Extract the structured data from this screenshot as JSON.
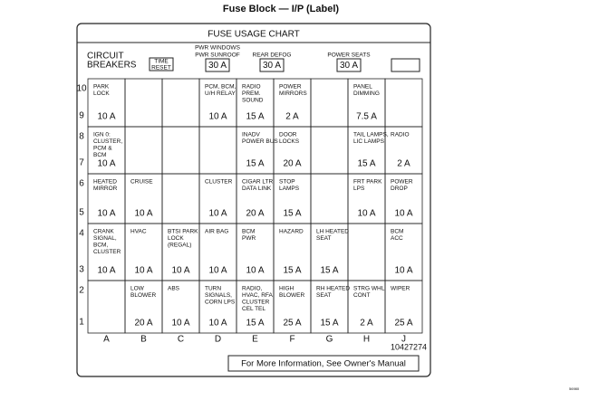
{
  "title": "Fuse Block — I/P (Label)",
  "chart_title": "FUSE USAGE CHART",
  "breakers": {
    "label": [
      "CIRCUIT",
      "BREAKERS"
    ],
    "reset": [
      "TIME",
      "RESET"
    ],
    "items": [
      {
        "lines": [
          "PWR WINDOWS",
          "PWR SUNROOF"
        ],
        "amp": "30 A"
      },
      {
        "lines": [
          "REAR DEFOG"
        ],
        "amp": "30 A"
      },
      {
        "lines": [
          "POWER SEATS"
        ],
        "amp": "30 A"
      }
    ]
  },
  "columns": [
    "A",
    "B",
    "C",
    "D",
    "E",
    "F",
    "G",
    "H",
    "J"
  ],
  "rows": [
    {
      "top": "10",
      "bottom": "9",
      "cells": [
        {
          "lines": [
            "PARK",
            "LOCK"
          ],
          "amp": "10 A"
        },
        null,
        null,
        {
          "lines": [
            "PCM, BCM,",
            "U/H RELAY"
          ],
          "amp": "10 A"
        },
        {
          "lines": [
            "RADIO",
            "PREM.",
            "SOUND"
          ],
          "amp": "15 A"
        },
        {
          "lines": [
            "POWER",
            "MIRRORS"
          ],
          "amp": "2 A"
        },
        null,
        {
          "lines": [
            "PANEL",
            "DIMMING"
          ],
          "amp": "7.5 A"
        },
        null
      ]
    },
    {
      "top": "8",
      "bottom": "7",
      "cells": [
        {
          "lines": [
            "IGN 0:",
            "CLUSTER,",
            "PCM &",
            "BCM"
          ],
          "amp": "10 A"
        },
        null,
        null,
        null,
        {
          "lines": [
            "INADV",
            "POWER BUS"
          ],
          "amp": "15 A"
        },
        {
          "lines": [
            "DOOR",
            "LOCKS"
          ],
          "amp": "20 A"
        },
        null,
        {
          "lines": [
            "TAIL LAMPS,",
            "LIC LAMPS"
          ],
          "amp": "15 A"
        },
        {
          "lines": [
            "RADIO"
          ],
          "amp": "2 A"
        }
      ]
    },
    {
      "top": "6",
      "bottom": "5",
      "cells": [
        {
          "lines": [
            "HEATED",
            "MIRROR"
          ],
          "amp": "10 A"
        },
        {
          "lines": [
            "CRUISE"
          ],
          "amp": "10 A"
        },
        null,
        {
          "lines": [
            "CLUSTER"
          ],
          "amp": "10 A"
        },
        {
          "lines": [
            "CIGAR LTR",
            "DATA LINK"
          ],
          "amp": "20 A"
        },
        {
          "lines": [
            "STOP",
            "LAMPS"
          ],
          "amp": "15 A"
        },
        null,
        {
          "lines": [
            "FRT PARK",
            "LPS"
          ],
          "amp": "10 A"
        },
        {
          "lines": [
            "POWER",
            "DROP"
          ],
          "amp": "10 A"
        }
      ]
    },
    {
      "top": "4",
      "bottom": "3",
      "cells": [
        {
          "lines": [
            "CRANK",
            "SIGNAL,",
            "BCM,",
            "CLUSTER"
          ],
          "amp": "10 A"
        },
        {
          "lines": [
            "HVAC"
          ],
          "amp": "10 A"
        },
        {
          "lines": [
            "BTSI PARK",
            "LOCK",
            "(REGAL)"
          ],
          "amp": "10 A"
        },
        {
          "lines": [
            "AIR BAG"
          ],
          "amp": "10 A"
        },
        {
          "lines": [
            "BCM",
            "PWR"
          ],
          "amp": "10 A"
        },
        {
          "lines": [
            "HAZARD"
          ],
          "amp": "15 A"
        },
        {
          "lines": [
            "LH HEATED",
            "SEAT"
          ],
          "amp": "15 A"
        },
        null,
        {
          "lines": [
            "BCM",
            "ACC"
          ],
          "amp": "10 A"
        }
      ]
    },
    {
      "top": "2",
      "bottom": "1",
      "cells": [
        null,
        {
          "lines": [
            "LOW",
            "BLOWER"
          ],
          "amp": "20 A"
        },
        {
          "lines": [
            "ABS"
          ],
          "amp": "10 A"
        },
        {
          "lines": [
            "TURN",
            "SIGNALS,",
            "CORN LPS"
          ],
          "amp": "10 A"
        },
        {
          "lines": [
            "RADIO,",
            "HVAC, RFA,",
            "CLUSTER",
            "CEL TEL"
          ],
          "amp": "15 A"
        },
        {
          "lines": [
            "HIGH",
            "BLOWER"
          ],
          "amp": "25 A"
        },
        {
          "lines": [
            "RH HEATED",
            "SEAT"
          ],
          "amp": "15 A"
        },
        {
          "lines": [
            "STRG WHL",
            "CONT"
          ],
          "amp": "2 A"
        },
        {
          "lines": [
            "WIPER"
          ],
          "amp": "25 A"
        }
      ]
    }
  ],
  "part_number": "10427274",
  "footer": "For More Information, See Owner's Manual",
  "figure_id": "56980"
}
